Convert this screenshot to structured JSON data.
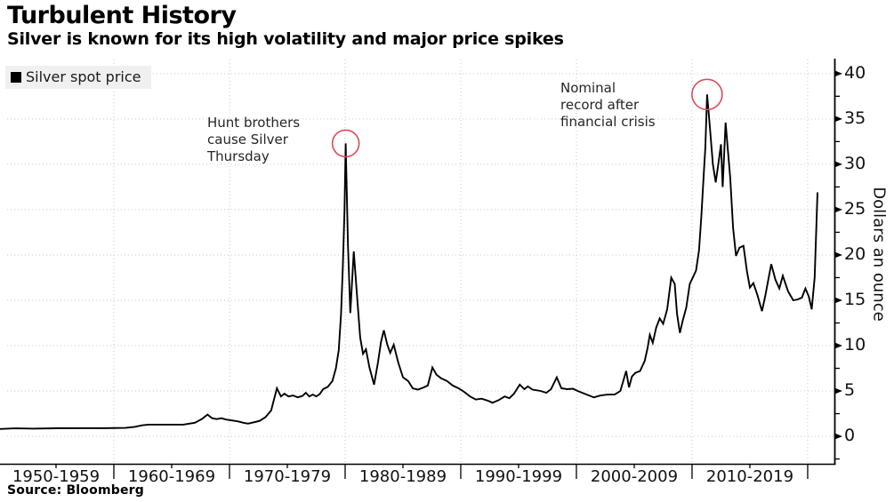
{
  "header": {
    "title": "Turbulent History",
    "subtitle": "Silver is known for its high volatility and major price spikes"
  },
  "legend": {
    "label": "Silver spot price",
    "swatch_color": "#000000"
  },
  "source": "Source: Bloomberg",
  "colors": {
    "line": "#000000",
    "grid": "#c9c9c9",
    "axis": "#000000",
    "annotation_circle": "#dd4a58",
    "legend_bg": "#f0f0f0"
  },
  "chart_data": {
    "type": "line",
    "title": "Turbulent History",
    "subtitle": "Silver is known for its high volatility and major price spikes",
    "xlabel": "",
    "ylabel": "Dollars an ounce",
    "legend_position": "top-left",
    "grid": "dotted",
    "xlim": [
      1950.77,
      2022.31
    ],
    "ylim": [
      -3.03,
      41.55
    ],
    "y_axis": {
      "side": "right",
      "major_ticks": [
        0,
        5,
        10,
        15,
        20,
        25,
        30,
        35,
        40
      ],
      "minor_ticks": [
        -2.5,
        2.5,
        7.5,
        12.5,
        17.5,
        22.5,
        27.5,
        32.5,
        37.5
      ]
    },
    "x_axis": {
      "major_tick_years": [
        1960,
        1970,
        1980,
        1990,
        2000,
        2010,
        2020
      ],
      "minor_tick_years": [
        1955,
        1965,
        1975,
        1985,
        1995,
        2005,
        2015
      ],
      "grid_years": [
        1960,
        1970,
        1980,
        1990,
        2000,
        2010,
        2020
      ],
      "labels": [
        {
          "text": "1950-1959",
          "center": 1955
        },
        {
          "text": "1960-1969",
          "center": 1965
        },
        {
          "text": "1970-1979",
          "center": 1975
        },
        {
          "text": "1980-1989",
          "center": 1985
        },
        {
          "text": "1990-1999",
          "center": 1995
        },
        {
          "text": "2000-2009",
          "center": 2005
        },
        {
          "text": "2010-2019",
          "center": 2015
        }
      ]
    },
    "annotations": [
      {
        "id": "hunt",
        "lines": [
          "Hunt brothers",
          "cause Silver",
          "Thursday"
        ],
        "circle": {
          "year": 1980.05,
          "value": 32.3,
          "r": 15
        }
      },
      {
        "id": "nominal",
        "lines": [
          "Nominal",
          "record after",
          "financial crisis"
        ],
        "circle": {
          "year": 2011.3,
          "value": 37.7,
          "r": 17
        }
      }
    ],
    "series": [
      {
        "name": "Silver spot price",
        "color": "#000000",
        "points": [
          [
            1950,
            0.8
          ],
          [
            1951.5,
            0.88
          ],
          [
            1953,
            0.85
          ],
          [
            1955,
            0.89
          ],
          [
            1957,
            0.9
          ],
          [
            1959,
            0.9
          ],
          [
            1961,
            0.93
          ],
          [
            1961.8,
            1.05
          ],
          [
            1962.5,
            1.22
          ],
          [
            1963,
            1.29
          ],
          [
            1964.5,
            1.29
          ],
          [
            1966,
            1.29
          ],
          [
            1967,
            1.5
          ],
          [
            1967.6,
            1.9
          ],
          [
            1968.1,
            2.4
          ],
          [
            1968.5,
            2.0
          ],
          [
            1968.9,
            1.9
          ],
          [
            1969.3,
            2.0
          ],
          [
            1969.7,
            1.85
          ],
          [
            1970.2,
            1.75
          ],
          [
            1970.7,
            1.65
          ],
          [
            1971.2,
            1.5
          ],
          [
            1971.6,
            1.4
          ],
          [
            1972.1,
            1.55
          ],
          [
            1972.6,
            1.7
          ],
          [
            1973.1,
            2.1
          ],
          [
            1973.6,
            2.85
          ],
          [
            1974.1,
            5.3
          ],
          [
            1974.45,
            4.4
          ],
          [
            1974.75,
            4.7
          ],
          [
            1975.1,
            4.4
          ],
          [
            1975.5,
            4.5
          ],
          [
            1975.9,
            4.3
          ],
          [
            1976.3,
            4.45
          ],
          [
            1976.6,
            4.8
          ],
          [
            1976.9,
            4.4
          ],
          [
            1977.2,
            4.6
          ],
          [
            1977.5,
            4.4
          ],
          [
            1977.8,
            4.65
          ],
          [
            1978.1,
            5.2
          ],
          [
            1978.5,
            5.45
          ],
          [
            1978.9,
            6.1
          ],
          [
            1979.2,
            7.5
          ],
          [
            1979.45,
            9.5
          ],
          [
            1979.65,
            13.5
          ],
          [
            1979.8,
            18.7
          ],
          [
            1979.95,
            25.0
          ],
          [
            1980.05,
            32.3
          ],
          [
            1980.25,
            21.0
          ],
          [
            1980.45,
            13.6
          ],
          [
            1980.75,
            20.4
          ],
          [
            1981.0,
            16.0
          ],
          [
            1981.3,
            10.9
          ],
          [
            1981.55,
            9.1
          ],
          [
            1981.8,
            9.6
          ],
          [
            1982.1,
            7.6
          ],
          [
            1982.5,
            5.7
          ],
          [
            1982.85,
            8.2
          ],
          [
            1983.1,
            10.4
          ],
          [
            1983.35,
            11.7
          ],
          [
            1983.65,
            10.1
          ],
          [
            1983.9,
            9.2
          ],
          [
            1984.2,
            10.1
          ],
          [
            1984.6,
            8.1
          ],
          [
            1985.0,
            6.5
          ],
          [
            1985.45,
            6.1
          ],
          [
            1985.85,
            5.3
          ],
          [
            1986.3,
            5.15
          ],
          [
            1986.8,
            5.4
          ],
          [
            1987.15,
            5.6
          ],
          [
            1987.55,
            7.6
          ],
          [
            1987.9,
            6.8
          ],
          [
            1988.3,
            6.4
          ],
          [
            1988.8,
            6.1
          ],
          [
            1989.3,
            5.6
          ],
          [
            1989.8,
            5.3
          ],
          [
            1990.3,
            4.9
          ],
          [
            1990.8,
            4.4
          ],
          [
            1991.3,
            4.05
          ],
          [
            1991.8,
            4.15
          ],
          [
            1992.3,
            3.95
          ],
          [
            1992.75,
            3.7
          ],
          [
            1993.3,
            4.0
          ],
          [
            1993.8,
            4.4
          ],
          [
            1994.2,
            4.2
          ],
          [
            1994.6,
            4.7
          ],
          [
            1995.1,
            5.7
          ],
          [
            1995.5,
            5.2
          ],
          [
            1995.8,
            5.5
          ],
          [
            1996.2,
            5.15
          ],
          [
            1996.9,
            5.0
          ],
          [
            1997.4,
            4.8
          ],
          [
            1997.8,
            5.2
          ],
          [
            1998.3,
            6.5
          ],
          [
            1998.7,
            5.3
          ],
          [
            1999.2,
            5.2
          ],
          [
            1999.7,
            5.25
          ],
          [
            2000.1,
            5.0
          ],
          [
            2000.7,
            4.7
          ],
          [
            2001.5,
            4.3
          ],
          [
            2002.1,
            4.5
          ],
          [
            2002.7,
            4.6
          ],
          [
            2003.3,
            4.6
          ],
          [
            2003.8,
            5.0
          ],
          [
            2004.3,
            7.2
          ],
          [
            2004.55,
            5.4
          ],
          [
            2004.8,
            6.6
          ],
          [
            2005.1,
            7.0
          ],
          [
            2005.5,
            7.2
          ],
          [
            2005.9,
            8.3
          ],
          [
            2006.15,
            9.7
          ],
          [
            2006.35,
            11.2
          ],
          [
            2006.6,
            10.3
          ],
          [
            2006.9,
            12.0
          ],
          [
            2007.2,
            13.0
          ],
          [
            2007.5,
            12.4
          ],
          [
            2007.85,
            14.0
          ],
          [
            2008.2,
            17.5
          ],
          [
            2008.5,
            16.8
          ],
          [
            2008.7,
            13.5
          ],
          [
            2008.95,
            11.4
          ],
          [
            2009.2,
            12.8
          ],
          [
            2009.5,
            14.2
          ],
          [
            2009.8,
            16.8
          ],
          [
            2010.1,
            17.6
          ],
          [
            2010.35,
            18.3
          ],
          [
            2010.6,
            20.5
          ],
          [
            2010.8,
            24.2
          ],
          [
            2011.0,
            28.7
          ],
          [
            2011.15,
            31.8
          ],
          [
            2011.3,
            37.7
          ],
          [
            2011.55,
            34.0
          ],
          [
            2011.8,
            30.0
          ],
          [
            2012.05,
            28.0
          ],
          [
            2012.3,
            30.3
          ],
          [
            2012.5,
            32.2
          ],
          [
            2012.65,
            27.5
          ],
          [
            2012.9,
            34.6
          ],
          [
            2013.1,
            31.5
          ],
          [
            2013.3,
            28.5
          ],
          [
            2013.55,
            23.0
          ],
          [
            2013.8,
            19.9
          ],
          [
            2014.1,
            20.8
          ],
          [
            2014.45,
            21.0
          ],
          [
            2014.75,
            18.2
          ],
          [
            2015.0,
            16.4
          ],
          [
            2015.3,
            16.9
          ],
          [
            2015.65,
            15.6
          ],
          [
            2016.05,
            13.8
          ],
          [
            2016.35,
            15.6
          ],
          [
            2016.85,
            19.0
          ],
          [
            2017.2,
            17.3
          ],
          [
            2017.55,
            16.3
          ],
          [
            2017.85,
            17.7
          ],
          [
            2018.3,
            16.0
          ],
          [
            2018.75,
            15.0
          ],
          [
            2019.15,
            15.1
          ],
          [
            2019.5,
            15.3
          ],
          [
            2019.8,
            16.3
          ],
          [
            2020.1,
            15.4
          ],
          [
            2020.35,
            14.0
          ],
          [
            2020.6,
            17.5
          ],
          [
            2020.85,
            26.9
          ]
        ]
      }
    ]
  }
}
